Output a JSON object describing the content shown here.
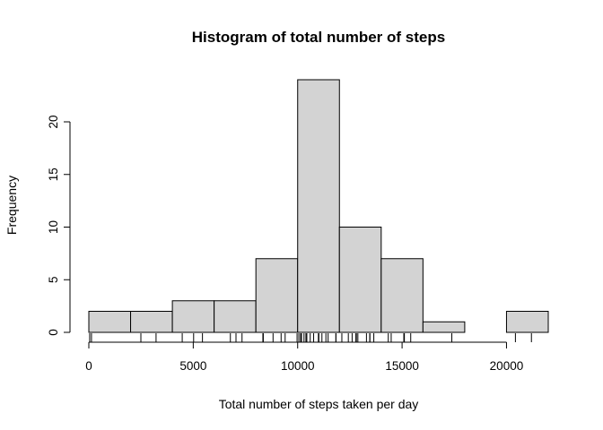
{
  "chart_data": {
    "type": "bar",
    "title": "Histogram of total number of steps",
    "xlabel": "Total number of steps taken per day",
    "ylabel": "Frequency",
    "bins": [
      {
        "start": 0,
        "end": 2000,
        "count": 2
      },
      {
        "start": 2000,
        "end": 4000,
        "count": 2
      },
      {
        "start": 4000,
        "end": 6000,
        "count": 3
      },
      {
        "start": 6000,
        "end": 8000,
        "count": 3
      },
      {
        "start": 8000,
        "end": 10000,
        "count": 7
      },
      {
        "start": 10000,
        "end": 12000,
        "count": 24
      },
      {
        "start": 12000,
        "end": 14000,
        "count": 10
      },
      {
        "start": 14000,
        "end": 16000,
        "count": 7
      },
      {
        "start": 16000,
        "end": 18000,
        "count": 1
      },
      {
        "start": 18000,
        "end": 20000,
        "count": 0
      },
      {
        "start": 20000,
        "end": 22000,
        "count": 2
      }
    ],
    "xlim": [
      0,
      22000
    ],
    "ylim": [
      0,
      24
    ],
    "x_ticks": [
      0,
      5000,
      10000,
      15000,
      20000
    ],
    "y_ticks": [
      0,
      5,
      10,
      15,
      20
    ],
    "rug": [
      41,
      126,
      2492,
      3219,
      4472,
      5018,
      5441,
      6778,
      7047,
      7336,
      8334,
      8355,
      8821,
      9207,
      9400,
      9972,
      10056,
      10139,
      10183,
      10304,
      10395,
      10439,
      10600,
      10765,
      10992,
      11015,
      11162,
      11352,
      11458,
      11829,
      11834,
      12116,
      12426,
      12608,
      12787,
      12811,
      12883,
      13294,
      13452,
      13460,
      13646,
      14339,
      14478,
      15084,
      15098,
      15110,
      15414,
      17382,
      20427,
      21194
    ],
    "grid": false,
    "legend": "none"
  }
}
